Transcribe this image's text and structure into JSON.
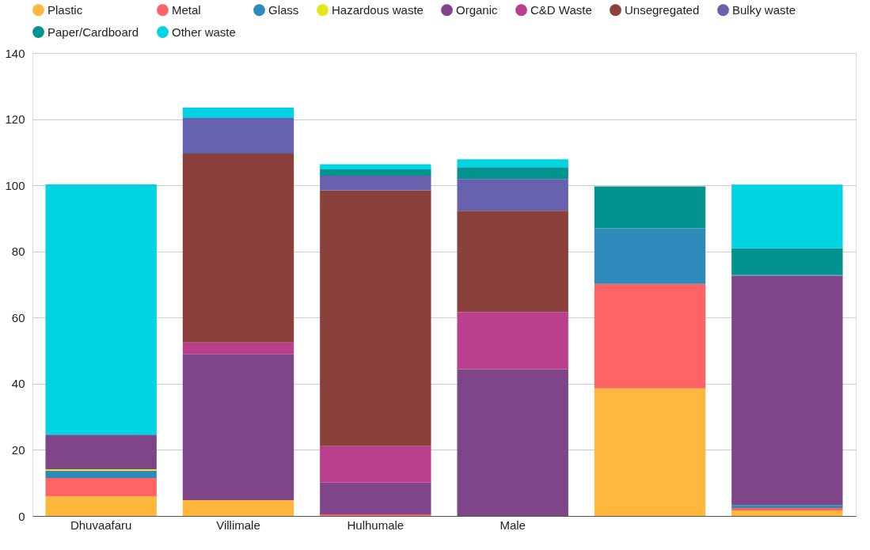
{
  "chart_data": {
    "type": "bar",
    "stacked": true,
    "categories": [
      "Dhuvaafaru",
      "Villimale",
      "Hulhumale",
      "Male",
      null,
      null
    ],
    "series": [
      {
        "name": "Plastic",
        "color": "#ffb83d",
        "values": [
          6.0,
          4.8,
          null,
          null,
          38.6,
          1.7
        ]
      },
      {
        "name": "Metal",
        "color": "#ff6366",
        "values": [
          5.5,
          null,
          0.5,
          null,
          31.6,
          0.7
        ]
      },
      {
        "name": "Glass",
        "color": "#2e8ab8",
        "values": [
          2.2,
          null,
          null,
          null,
          16.8,
          0.9
        ]
      },
      {
        "name": "Hazardous waste",
        "color": "#e5e51a",
        "values": [
          0.4,
          null,
          null,
          null,
          null,
          null
        ]
      },
      {
        "name": "Organic",
        "color": "#7e4689",
        "values": [
          10.5,
          44.1,
          9.6,
          44.4,
          null,
          69.3
        ]
      },
      {
        "name": "C&D Waste",
        "color": "#bb3f8c",
        "values": [
          null,
          3.6,
          11.0,
          17.2,
          null,
          null
        ]
      },
      {
        "name": "Unsegregated",
        "color": "#8a413c",
        "values": [
          null,
          57.1,
          77.4,
          30.7,
          null,
          null
        ]
      },
      {
        "name": "Bulky waste",
        "color": "#6762ae",
        "values": [
          null,
          10.8,
          4.4,
          9.6,
          null,
          0.3
        ]
      },
      {
        "name": "Paper/Cardboard",
        "color": "#01938d",
        "values": [
          null,
          null,
          1.9,
          3.6,
          12.7,
          8.1
        ]
      },
      {
        "name": "Other waste",
        "color": "#00d4e3",
        "values": [
          75.7,
          3.1,
          1.6,
          2.4,
          null,
          19.2
        ]
      }
    ],
    "ylim": [
      0,
      140
    ],
    "yticks": [
      0,
      20,
      40,
      60,
      80,
      100,
      120,
      140
    ],
    "grid": "y",
    "legend": "top"
  }
}
